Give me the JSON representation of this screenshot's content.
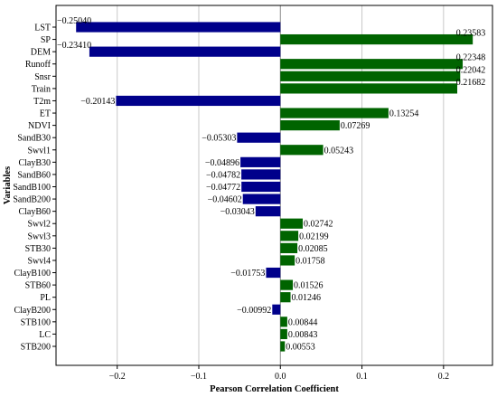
{
  "chart_data": {
    "type": "bar",
    "orientation": "horizontal",
    "title": "",
    "xlabel": "Pearson Correlation Coefficient",
    "ylabel": "Variables",
    "xlim": [
      -0.275,
      0.26
    ],
    "xticks": [
      -0.2,
      -0.1,
      0.0,
      0.1,
      0.2
    ],
    "xtick_labels": [
      "−0.2",
      "−0.1",
      "0.0",
      "0.1",
      "0.2"
    ],
    "grid": "vertical",
    "colors": {
      "positive": "#006400",
      "negative": "#00008B"
    },
    "categories": [
      "LST",
      "SP",
      "DEM",
      "Runoff",
      "Snsr",
      "Train",
      "T2m",
      "ET",
      "NDVI",
      "SandB30",
      "Swvl1",
      "ClayB30",
      "SandB60",
      "SandB100",
      "SandB200",
      "ClayB60",
      "Swvl2",
      "Swvl3",
      "STB30",
      "Swvl4",
      "ClayB100",
      "STB60",
      "PL",
      "ClayB200",
      "STB100",
      "LC",
      "STB200"
    ],
    "values": [
      -0.2504,
      0.23583,
      -0.2341,
      0.22348,
      0.22042,
      0.21682,
      -0.20143,
      0.13254,
      0.07269,
      -0.05303,
      0.05243,
      -0.04896,
      -0.04782,
      -0.04772,
      -0.04602,
      -0.03043,
      0.02742,
      0.02199,
      0.02085,
      0.01758,
      -0.01753,
      0.01526,
      0.01246,
      -0.00992,
      0.00844,
      0.00843,
      0.00553
    ],
    "value_labels": [
      "−0.25040",
      "0.23583",
      "−0.23410",
      "0.22348",
      "0.22042",
      "0.21682",
      "−0.20143",
      "0.13254",
      "0.07269",
      "−0.05303",
      "0.05243",
      "−0.04896",
      "−0.04782",
      "−0.04772",
      "−0.04602",
      "−0.03043",
      "0.02742",
      "0.02199",
      "0.02085",
      "0.01758",
      "−0.01753",
      "0.01526",
      "0.01246",
      "−0.00992",
      "0.00844",
      "0.00843",
      "0.00553"
    ]
  }
}
